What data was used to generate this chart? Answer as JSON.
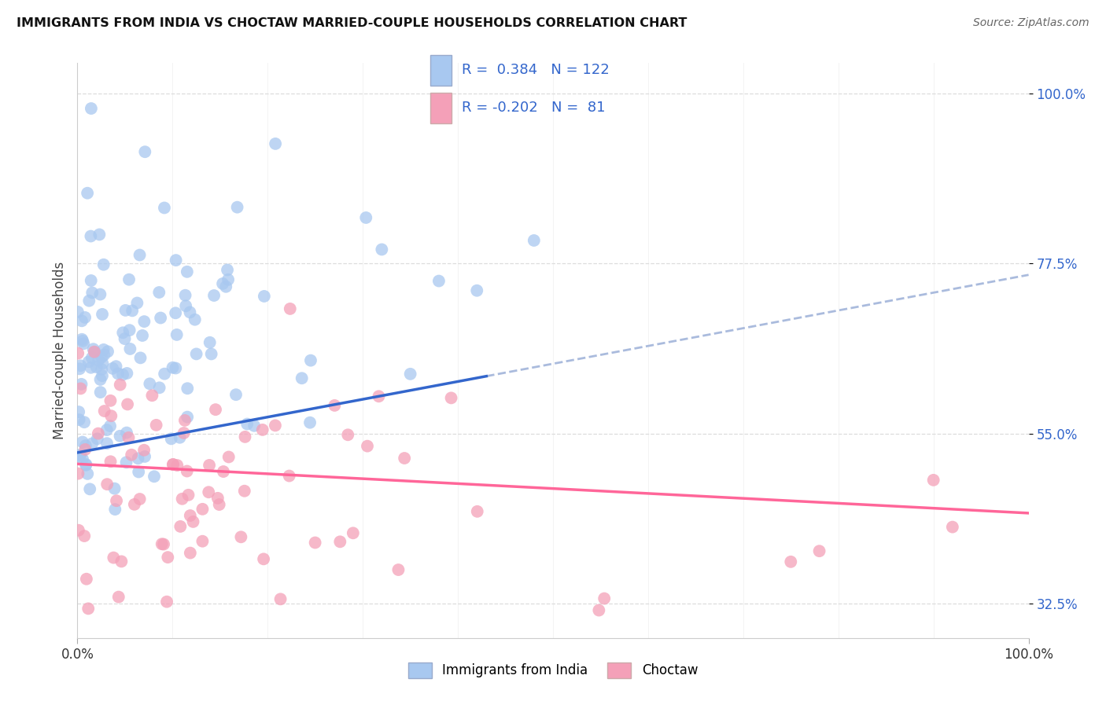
{
  "title": "IMMIGRANTS FROM INDIA VS CHOCTAW MARRIED-COUPLE HOUSEHOLDS CORRELATION CHART",
  "source": "Source: ZipAtlas.com",
  "ylabel_label": "Married-couple Households",
  "legend_label1": "Immigrants from India",
  "legend_label2": "Choctaw",
  "R1": 0.384,
  "N1": 122,
  "R2": -0.202,
  "N2": 81,
  "blue_color": "#A8C8F0",
  "pink_color": "#F4A0B8",
  "blue_line_color": "#3366CC",
  "pink_line_color": "#FF6699",
  "gray_dash_color": "#BBBBBB",
  "background_color": "#FFFFFF",
  "grid_color": "#DDDDDD",
  "xlim": [
    0.0,
    100.0
  ],
  "ylim": [
    28.0,
    104.0
  ],
  "yticks": [
    32.5,
    55.0,
    77.5,
    100.0
  ],
  "ytick_labels": [
    "32.5%",
    "55.0%",
    "77.5%",
    "100.0%"
  ],
  "xticks": [
    0.0,
    100.0
  ],
  "xtick_labels": [
    "0.0%",
    "100.0%"
  ],
  "seed": 42,
  "blue_trend_x": [
    0.0,
    100.0
  ],
  "blue_trend_y": [
    52.5,
    76.0
  ],
  "blue_solid_end_x": 43.0,
  "pink_trend_x": [
    0.0,
    100.0
  ],
  "pink_trend_y": [
    51.0,
    44.5
  ],
  "pink_solid_end_x": 100.0,
  "blue_dash_color": "#AABBDD",
  "blue_n": 122,
  "pink_n": 81
}
